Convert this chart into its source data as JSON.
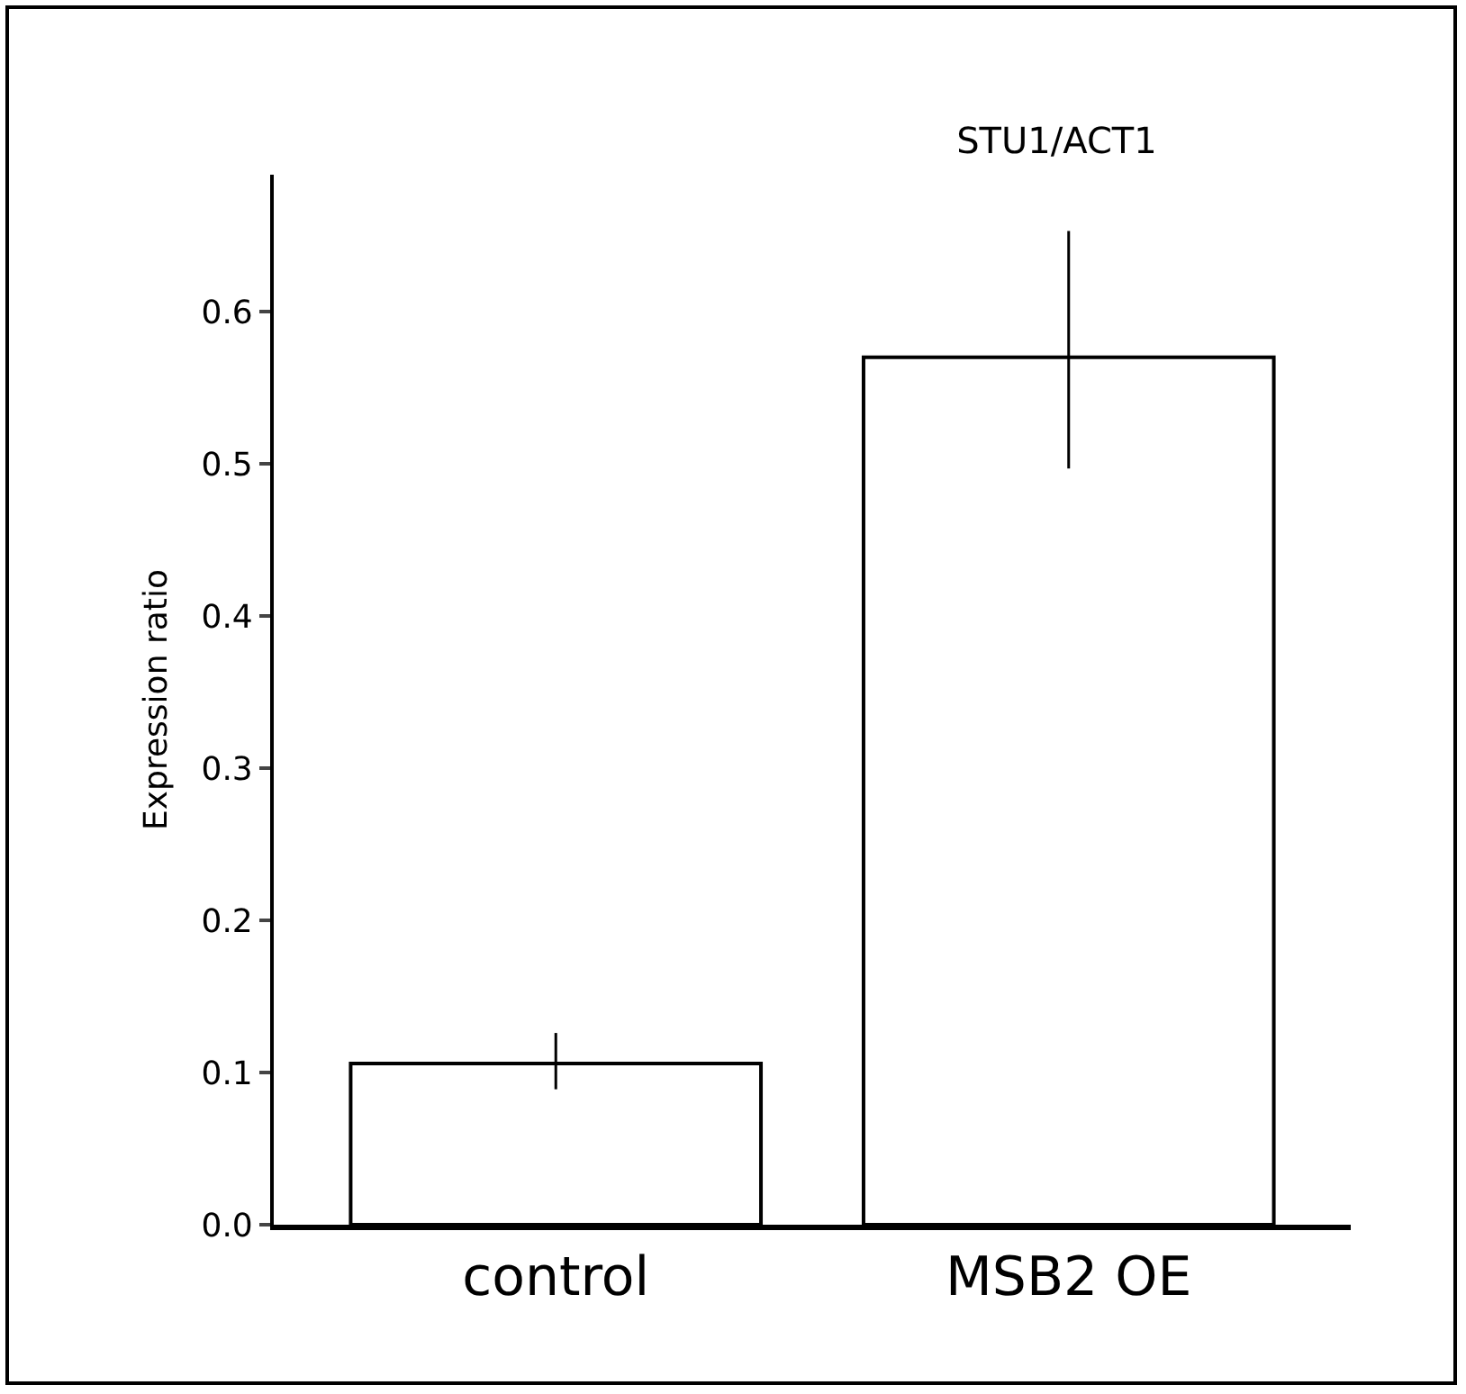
{
  "chart_data": {
    "type": "bar",
    "title": "STU1/ACT1",
    "ylabel": "Expression ratio",
    "categories": [
      "control",
      "MSB2 OE"
    ],
    "values": [
      0.106,
      0.57
    ],
    "errors": [
      [
        0.089,
        0.126
      ],
      [
        0.497,
        0.653
      ]
    ],
    "color": "#ffffff",
    "ylim": [
      0,
      0.69
    ],
    "yticks": [
      {
        "value": 0,
        "label": "0.0"
      },
      0.1,
      0.2,
      0.3,
      0.4,
      0.5,
      0.6
    ],
    "grid": false,
    "legend": false
  }
}
